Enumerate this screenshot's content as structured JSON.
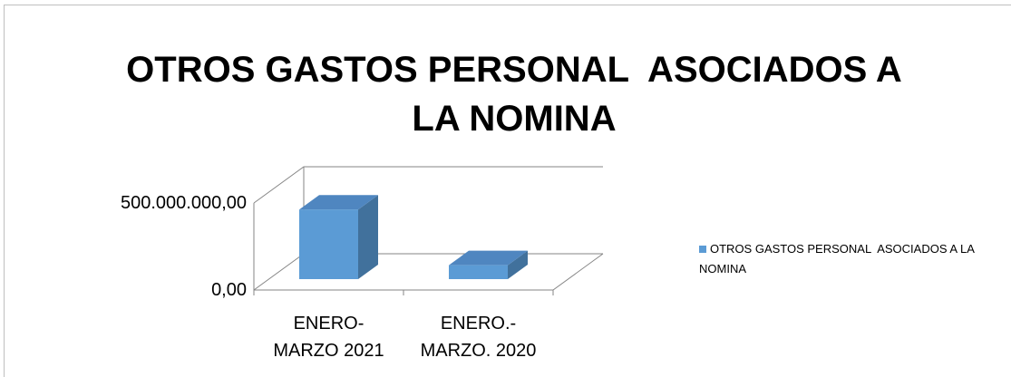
{
  "chart_data": {
    "type": "bar3d",
    "title": "OTROS GASTOS PERSONAL  ASOCIADOS A LA NOMINA",
    "categories": [
      "ENERO-MARZO 2021",
      "ENERO.-MARZO. 2020"
    ],
    "series": [
      {
        "name": "OTROS GASTOS PERSONAL  ASOCIADOS A LA NOMINA",
        "color": "#5b9bd5",
        "values": [
          400000000,
          80000000
        ]
      }
    ],
    "ylim": [
      0,
      500000000
    ],
    "yticks": [
      {
        "value": 0,
        "label": "0,00"
      },
      {
        "value": 500000000,
        "label": "500.000.000,00"
      }
    ],
    "grid": true,
    "legend": "right"
  }
}
